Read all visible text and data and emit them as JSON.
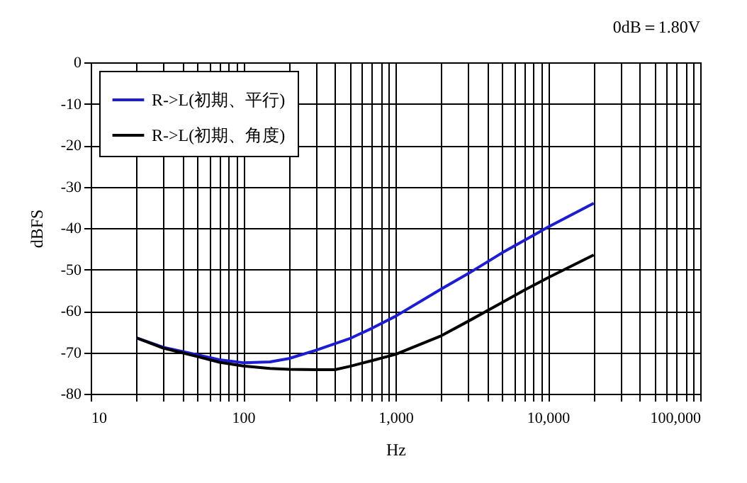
{
  "chart_data": {
    "type": "line",
    "xlabel": "Hz",
    "ylabel": "dBFS",
    "annotations": [
      "0dB＝1.80V"
    ],
    "log": "x",
    "grid": true,
    "legend": "top left",
    "line_style": "solid",
    "marker": "none",
    "xlim": [
      10,
      100000
    ],
    "ylim": [
      -80,
      0
    ],
    "xticks": [
      10,
      {
        "value": 20,
        "label": null
      },
      {
        "value": 30,
        "label": null
      },
      {
        "value": 40,
        "label": null
      },
      {
        "value": 50,
        "label": null
      },
      {
        "value": 60,
        "label": null
      },
      {
        "value": 70,
        "label": null
      },
      {
        "value": 80,
        "label": null
      },
      {
        "value": 90,
        "label": null
      },
      100,
      {
        "value": 200,
        "label": null
      },
      {
        "value": 300,
        "label": null
      },
      {
        "value": 400,
        "label": null
      },
      {
        "value": 500,
        "label": null
      },
      {
        "value": 600,
        "label": null
      },
      {
        "value": 700,
        "label": null
      },
      {
        "value": 800,
        "label": null
      },
      {
        "value": 900,
        "label": null
      },
      {
        "value": 1000,
        "label": "1,000"
      },
      {
        "value": 2000,
        "label": null
      },
      {
        "value": 3000,
        "label": null
      },
      {
        "value": 4000,
        "label": null
      },
      {
        "value": 5000,
        "label": null
      },
      {
        "value": 6000,
        "label": null
      },
      {
        "value": 7000,
        "label": null
      },
      {
        "value": 8000,
        "label": null
      },
      {
        "value": 9000,
        "label": null
      },
      {
        "value": 10000,
        "label": "10,000"
      },
      {
        "value": 20000,
        "label": null
      },
      {
        "value": 30000,
        "label": null
      },
      {
        "value": 40000,
        "label": null
      },
      {
        "value": 50000,
        "label": null
      },
      {
        "value": 60000,
        "label": null
      },
      {
        "value": 70000,
        "label": null
      },
      {
        "value": 80000,
        "label": null
      },
      {
        "value": 90000,
        "label": null
      },
      {
        "value": 100000,
        "label": "100,000"
      }
    ],
    "yticks": [
      0,
      -10,
      -20,
      -30,
      -40,
      -50,
      -60,
      -70,
      -80
    ],
    "series": [
      {
        "name": "R->L(初期、平行)",
        "color": "#1c1cd0",
        "x": [
          20,
          30,
          50,
          70,
          100,
          150,
          200,
          300,
          500,
          700,
          1000,
          2000,
          3000,
          5000,
          7000,
          10000,
          20000
        ],
        "values": [
          -66.5,
          -68.8,
          -70.6,
          -71.8,
          -72.5,
          -72.3,
          -71.5,
          -69.5,
          -66.7,
          -64.2,
          -61.3,
          -54.7,
          -51,
          -46,
          -43,
          -39.8,
          -34
        ]
      },
      {
        "name": "R->L(初期、角度)",
        "color": "#000000",
        "x": [
          20,
          30,
          50,
          70,
          100,
          150,
          200,
          300,
          400,
          500,
          700,
          1000,
          2000,
          3000,
          5000,
          7000,
          10000,
          20000
        ],
        "values": [
          -66.5,
          -69,
          -71,
          -72.4,
          -73.3,
          -73.9,
          -74.1,
          -74.2,
          -74.2,
          -73.4,
          -72,
          -70.5,
          -66,
          -62.5,
          -58,
          -55,
          -52,
          -46.5
        ]
      }
    ]
  }
}
